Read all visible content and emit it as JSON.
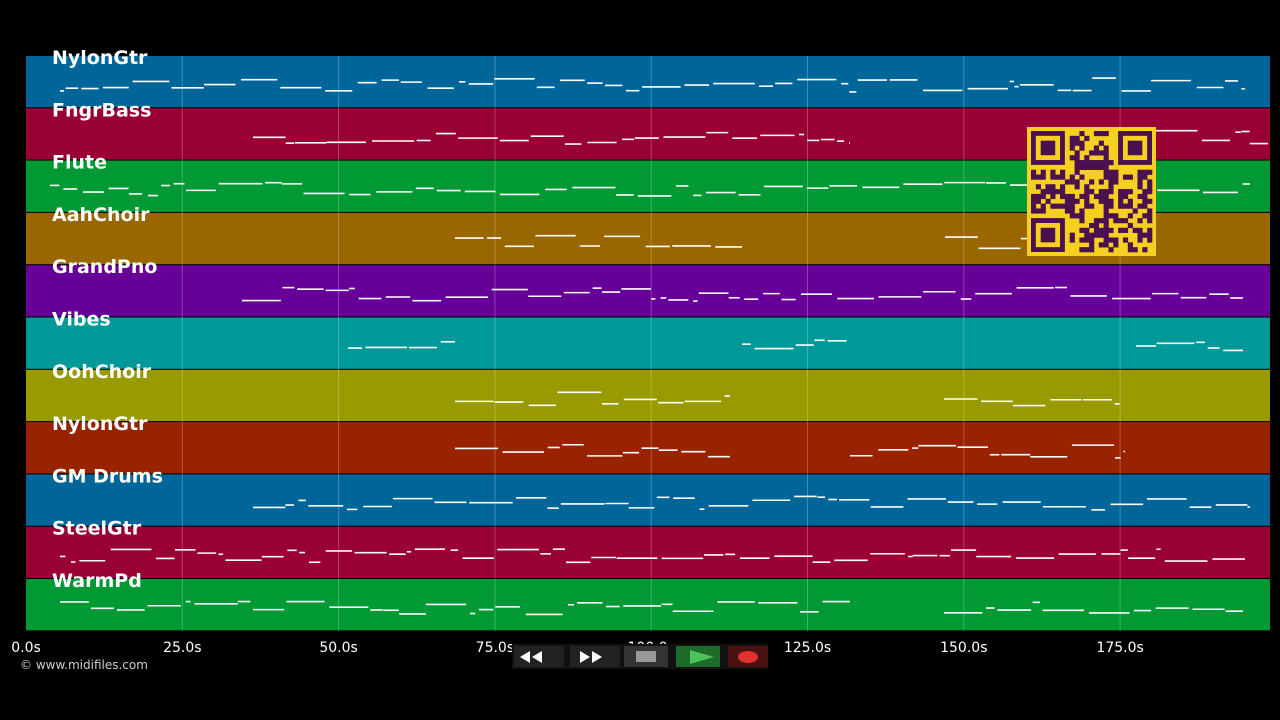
{
  "tracks": [
    {
      "name": "NylonGtr"
    },
    {
      "name": "FngrBass"
    },
    {
      "name": "Flute"
    },
    {
      "name": "AahChoir"
    },
    {
      "name": "GrandPno"
    },
    {
      "name": "Vibes"
    },
    {
      "name": "OohChoir"
    },
    {
      "name": "NylonGtr"
    },
    {
      "name": "GM Drums"
    },
    {
      "name": "SteelGtr"
    },
    {
      "name": "WarmPd"
    }
  ],
  "time_axis": {
    "ticks": [
      "0.0s",
      "25.0s",
      "50.0s",
      "75.0s",
      "100.0s",
      "125.0s",
      "150.0s",
      "175.0s"
    ]
  },
  "footer": {
    "copyright": "© www.midifiles.com"
  }
}
